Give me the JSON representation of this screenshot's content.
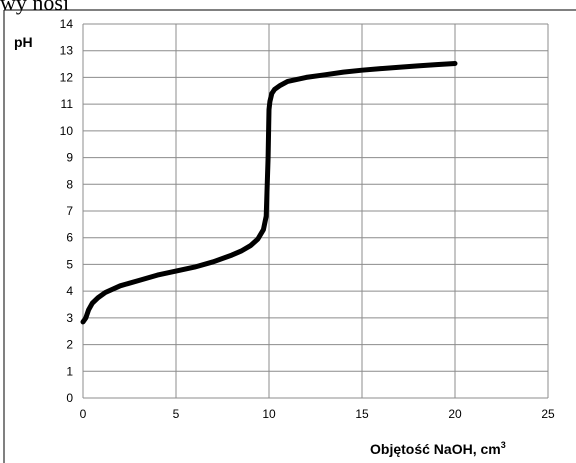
{
  "header_fragment": "wy nosi",
  "chart_data": {
    "type": "line",
    "title": "",
    "xlabel": "Objętość NaOH, cm",
    "xlabel_sup": "3",
    "ylabel": "pH",
    "xlim": [
      0,
      25
    ],
    "ylim": [
      0,
      14
    ],
    "x_ticks": [
      0,
      5,
      10,
      15,
      20,
      25
    ],
    "y_ticks": [
      0,
      1,
      2,
      3,
      4,
      5,
      6,
      7,
      8,
      9,
      10,
      11,
      12,
      13,
      14
    ],
    "grid": true,
    "legend": "none",
    "line_color": "#000000",
    "series": [
      {
        "x": [
          0,
          0.15,
          0.3,
          0.5,
          0.8,
          1.2,
          2,
          3,
          4,
          5,
          6,
          7,
          8,
          8.5,
          9,
          9.4,
          9.7,
          9.85,
          9.95,
          10,
          10.05,
          10.15,
          10.3,
          10.6,
          11,
          12,
          13,
          14,
          15,
          16,
          17,
          18,
          19,
          20
        ],
        "y": [
          2.85,
          3.0,
          3.3,
          3.55,
          3.75,
          3.95,
          4.2,
          4.4,
          4.6,
          4.75,
          4.9,
          5.1,
          5.35,
          5.5,
          5.7,
          5.95,
          6.3,
          6.8,
          9.0,
          10.8,
          11.1,
          11.4,
          11.55,
          11.7,
          11.85,
          12.0,
          12.1,
          12.2,
          12.27,
          12.33,
          12.38,
          12.43,
          12.48,
          12.52
        ]
      }
    ]
  }
}
